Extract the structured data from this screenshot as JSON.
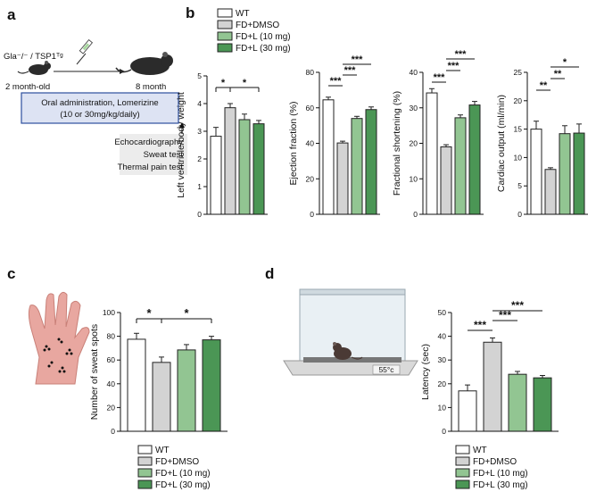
{
  "panel_labels": {
    "a": "a",
    "b": "b",
    "c": "c",
    "d": "d"
  },
  "colors": {
    "wt": "#ffffff",
    "dmso": "#d3d3d3",
    "l10": "#92c592",
    "l30": "#4b9655",
    "box_fill": "#dde3f3",
    "box_stroke": "#2d4f9e",
    "gray_box": "#ececec"
  },
  "schematic": {
    "strain": "Gla⁻/⁻ / TSP1ᵀᵍ",
    "start_age": "2 month-old",
    "end_age": "8 month",
    "treatment_line1": "Oral administration, Lomerizine",
    "treatment_line2": "(10 or 30mg/kg/daily)",
    "tests": [
      "Echocardiography",
      "Sweat test",
      "Thermal pain test"
    ]
  },
  "hotplate": {
    "temperature": "55°c"
  },
  "legend": {
    "groups": [
      "WT",
      "FD+DMSO",
      "FD+L (10 mg)",
      "FD+L (30 mg)"
    ]
  },
  "chart_data": [
    {
      "id": "lv_bw",
      "type": "bar",
      "categories": [
        "WT",
        "FD+DMSO",
        "FD+L (10 mg)",
        "FD+L (30 mg)"
      ],
      "values": [
        2.82,
        3.85,
        3.42,
        3.27
      ],
      "errors": [
        0.32,
        0.15,
        0.2,
        0.12
      ],
      "ylabel": "Left ventricle/body weight",
      "ylim": [
        0,
        5
      ],
      "yticks": [
        0,
        1,
        2,
        3,
        4,
        5
      ],
      "sig": [
        {
          "from": 0,
          "to": 1,
          "level": 0,
          "label": "*"
        },
        {
          "from": 1,
          "to": 3,
          "level": 0,
          "label": "*"
        }
      ]
    },
    {
      "id": "ef",
      "type": "bar",
      "categories": [
        "WT",
        "FD+DMSO",
        "FD+L (10 mg)",
        "FD+L (30 mg)"
      ],
      "values": [
        64.5,
        40.2,
        54.0,
        59.0
      ],
      "errors": [
        1.5,
        1.0,
        1.2,
        1.5
      ],
      "ylabel": "Ejection fraction (%)",
      "ylim": [
        0,
        80
      ],
      "yticks": [
        0,
        20,
        40,
        60,
        80
      ],
      "sig": [
        {
          "from": 0,
          "to": 1,
          "level": 0,
          "label": "***"
        },
        {
          "from": 1,
          "to": 2,
          "level": 1,
          "label": "***"
        },
        {
          "from": 1,
          "to": 3,
          "level": 2,
          "label": "***"
        }
      ]
    },
    {
      "id": "fs",
      "type": "bar",
      "categories": [
        "WT",
        "FD+DMSO",
        "FD+L (10 mg)",
        "FD+L (30 mg)"
      ],
      "values": [
        34.2,
        19.0,
        27.2,
        30.8
      ],
      "errors": [
        1.2,
        0.6,
        0.8,
        1.0
      ],
      "ylabel": "Fractional shortening (%)",
      "ylim": [
        0,
        40
      ],
      "yticks": [
        0,
        10,
        20,
        30,
        40
      ],
      "sig": [
        {
          "from": 0,
          "to": 1,
          "level": 0,
          "label": "***"
        },
        {
          "from": 1,
          "to": 2,
          "level": 1,
          "label": "***"
        },
        {
          "from": 1,
          "to": 3,
          "level": 2,
          "label": "***"
        }
      ]
    },
    {
      "id": "co",
      "type": "bar",
      "categories": [
        "WT",
        "FD+DMSO",
        "FD+L (10 mg)",
        "FD+L (30 mg)"
      ],
      "values": [
        15.0,
        7.9,
        14.2,
        14.3
      ],
      "errors": [
        1.4,
        0.3,
        1.4,
        1.6
      ],
      "ylabel": "Cardiac output (ml/min)",
      "ylim": [
        0,
        25
      ],
      "yticks": [
        0,
        5,
        10,
        15,
        20,
        25
      ],
      "sig": [
        {
          "from": 0,
          "to": 1,
          "level": 0,
          "label": "**"
        },
        {
          "from": 1,
          "to": 2,
          "level": 1,
          "label": "**"
        },
        {
          "from": 1,
          "to": 3,
          "level": 2,
          "label": "*"
        }
      ]
    },
    {
      "id": "sweat",
      "type": "bar",
      "categories": [
        "WT",
        "FD+DMSO",
        "FD+L (10 mg)",
        "FD+L (30 mg)"
      ],
      "values": [
        77.5,
        58.0,
        68.5,
        77.0
      ],
      "errors": [
        5.0,
        4.5,
        4.5,
        3.0
      ],
      "ylabel": "Number of sweat spots",
      "ylim": [
        0,
        100
      ],
      "yticks": [
        0,
        20,
        40,
        60,
        80,
        100
      ],
      "sig": [
        {
          "from": 0,
          "to": 1,
          "level": 0,
          "label": "*"
        },
        {
          "from": 1,
          "to": 3,
          "level": 0,
          "label": "*"
        }
      ]
    },
    {
      "id": "latency",
      "type": "bar",
      "categories": [
        "WT",
        "FD+DMSO",
        "FD+L (10 mg)",
        "FD+L (30 mg)"
      ],
      "values": [
        17.0,
        37.5,
        24.0,
        22.5
      ],
      "errors": [
        2.5,
        1.8,
        1.2,
        1.0
      ],
      "ylabel": "Latency (sec)",
      "ylim": [
        0,
        50
      ],
      "yticks": [
        0,
        10,
        20,
        30,
        40,
        50
      ],
      "sig": [
        {
          "from": 0,
          "to": 1,
          "level": 0,
          "label": "***"
        },
        {
          "from": 1,
          "to": 2,
          "level": 1,
          "label": "***"
        },
        {
          "from": 1,
          "to": 3,
          "level": 2,
          "label": "***"
        }
      ]
    }
  ]
}
